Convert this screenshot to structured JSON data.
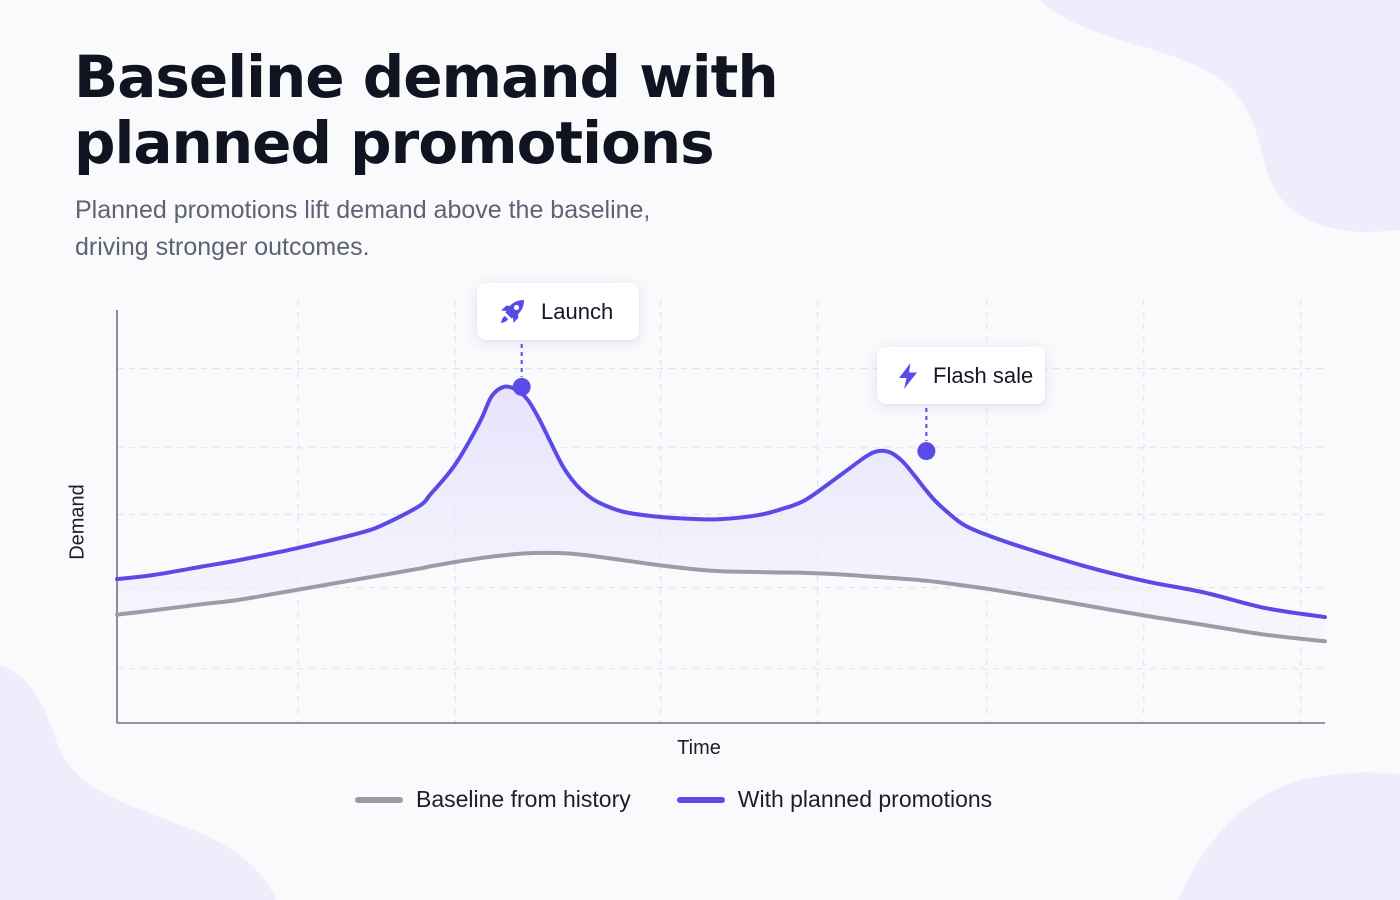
{
  "header": {
    "title_lines": [
      "Baseline demand with",
      "planned promotions"
    ],
    "subtitle_lines": [
      "Planned promotions lift demand above the baseline,",
      "driving stronger outcomes."
    ]
  },
  "colors": {
    "baseline": "#9c9ca8",
    "promo": "#5b4be6",
    "area_top": "#e9e5fb",
    "grid": "#e3e3ef",
    "axis": "#6f7280",
    "blob": "#efedfb"
  },
  "chart_data": {
    "type": "line",
    "xlabel": "Time",
    "ylabel": "Demand",
    "xlim": [
      0,
      100
    ],
    "ylim": [
      0,
      100
    ],
    "grid": true,
    "legend_position": "bottom-center",
    "shade_between_series": true,
    "x": [
      0,
      3,
      7,
      10,
      15,
      20,
      22,
      25,
      26,
      28,
      30,
      31,
      32,
      33,
      34,
      35,
      36,
      37,
      38,
      39,
      40,
      42,
      45,
      48,
      50,
      53,
      55,
      57,
      60,
      62,
      63,
      64,
      65,
      66,
      67,
      68,
      70,
      72,
      75,
      80,
      85,
      90,
      95,
      100
    ],
    "series": [
      {
        "name": "Baseline from history",
        "color_key": "baseline",
        "values": [
          26,
          27,
          28.5,
          29.5,
          32,
          34.5,
          35.5,
          37,
          37.6,
          38.6,
          39.5,
          39.9,
          40.2,
          40.5,
          40.7,
          40.8,
          40.8,
          40.7,
          40.5,
          40.2,
          39.8,
          39,
          37.8,
          36.8,
          36.4,
          36.2,
          36.1,
          36,
          35.6,
          35.2,
          35,
          34.8,
          34.6,
          34.4,
          34.1,
          33.8,
          33,
          32.2,
          30.8,
          28.3,
          25.8,
          23.5,
          21.2,
          19.6
        ]
      },
      {
        "name": "With planned promotions",
        "color_key": "promo",
        "values": [
          34.5,
          35.5,
          37.5,
          39,
          42,
          45.5,
          47.5,
          52,
          55,
          62,
          72,
          78.3,
          80.6,
          80,
          77.5,
          72.6,
          66.7,
          61.1,
          57.2,
          54.5,
          52.7,
          50.6,
          49.4,
          48.9,
          48.9,
          49.8,
          51.3,
          53.5,
          59.7,
          63.9,
          65.2,
          64.9,
          62.8,
          59.4,
          55.7,
          52.5,
          47.7,
          45.1,
          42.1,
          37.7,
          34.1,
          31.3,
          27.6,
          25.4
        ]
      }
    ],
    "annotations": [
      {
        "label": "Launch",
        "x": 33.5,
        "y": 80.6,
        "icon": "rocket-icon"
      },
      {
        "label": "Flash sale",
        "x": 67,
        "y": 65.2,
        "icon": "lightning-icon"
      }
    ]
  }
}
